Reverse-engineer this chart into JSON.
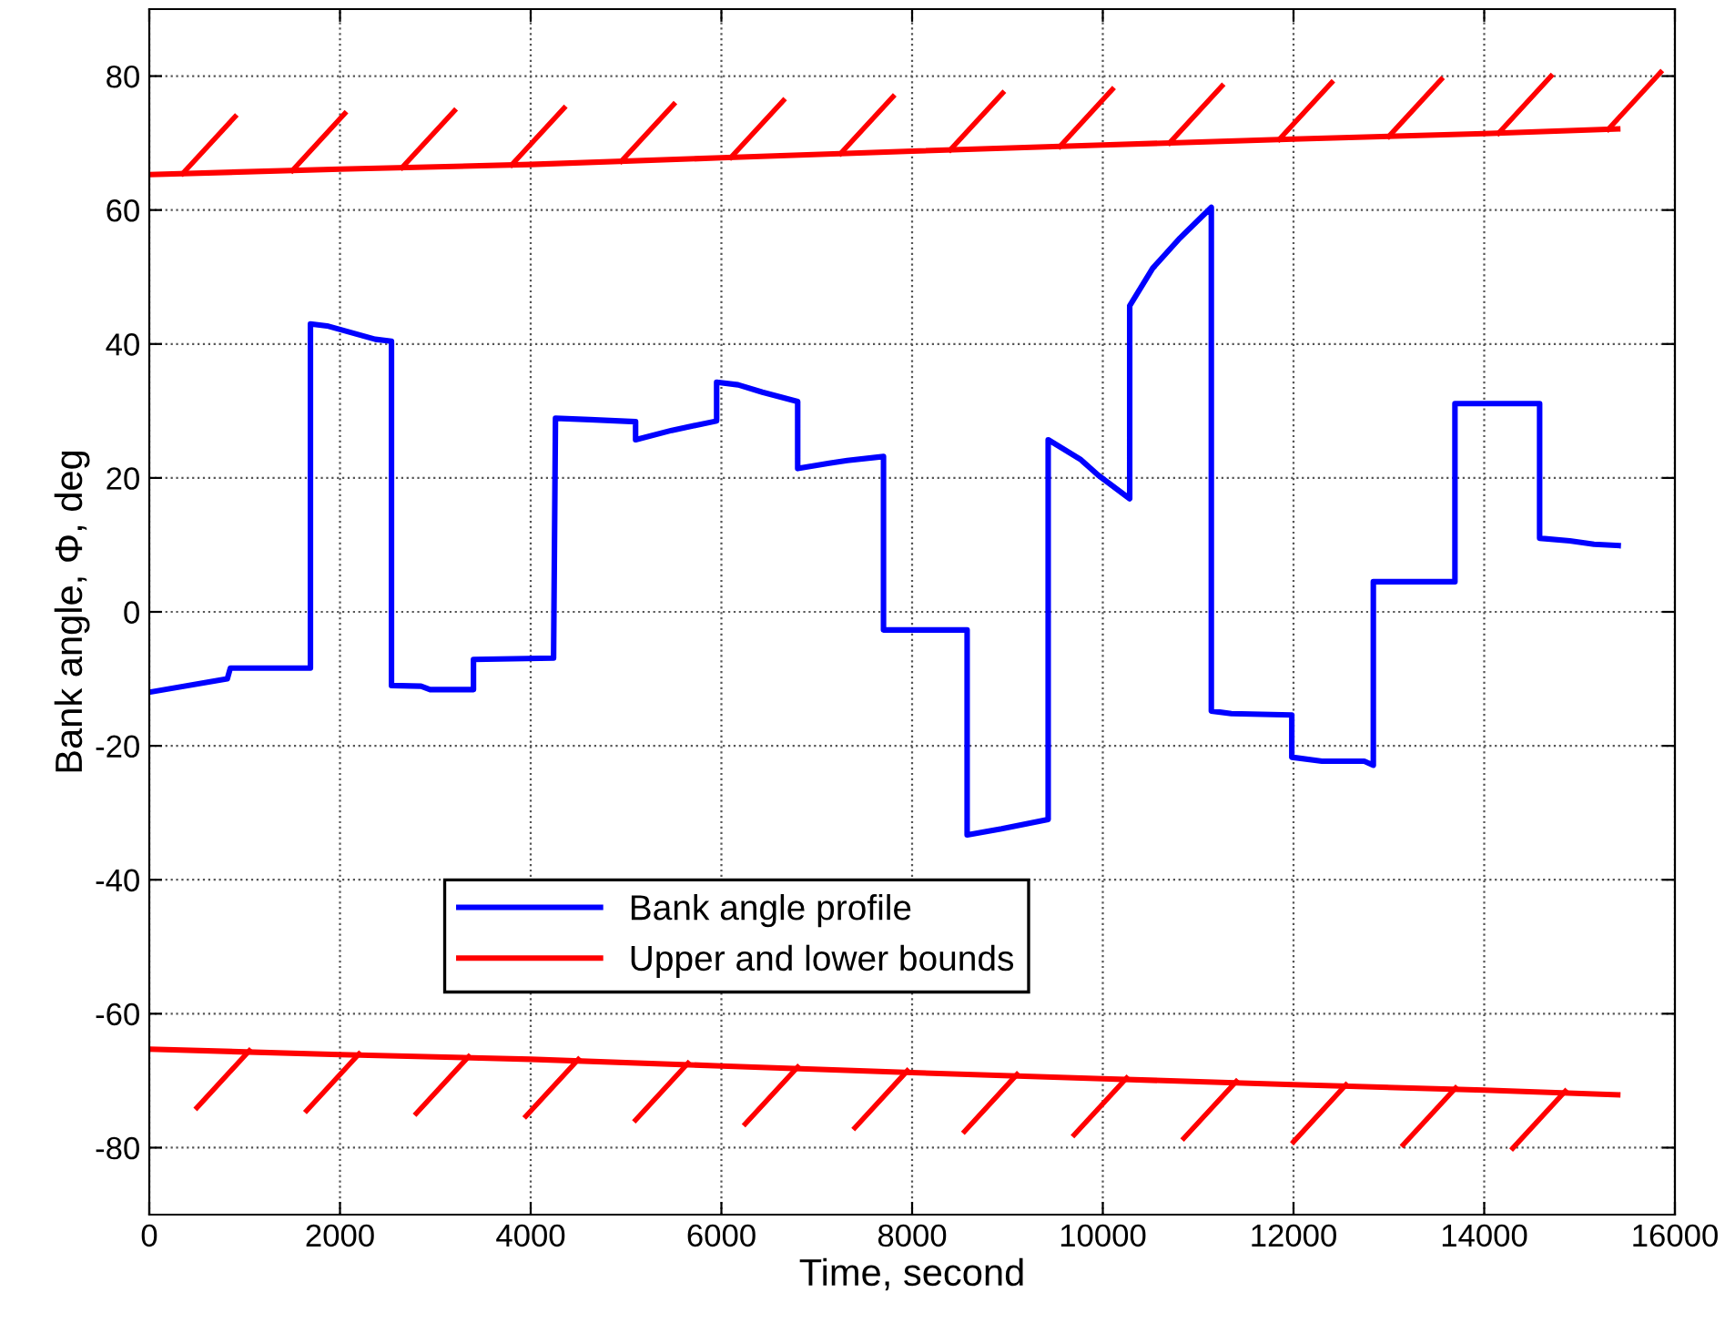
{
  "chart_data": {
    "type": "line",
    "xlabel": "Time, second",
    "ylabel": "Bank angle, Φ, deg",
    "xlim": [
      0,
      16000
    ],
    "xticks": [
      0,
      2000,
      4000,
      6000,
      8000,
      10000,
      12000,
      14000,
      16000
    ],
    "ylim": [
      -90,
      90
    ],
    "yticks": [
      -80,
      -60,
      -40,
      -20,
      0,
      20,
      40,
      60,
      80
    ],
    "grid": true,
    "legend": "bottom",
    "marker": "none",
    "line_style": "solid",
    "series": [
      {
        "name": "Bank angle profile",
        "color": "#0000ff",
        "x": [
          0,
          818,
          850,
          1690,
          1690,
          1864,
          2370,
          2540,
          2540,
          2850,
          2945,
          3400,
          3400,
          4240,
          4260,
          4620,
          5100,
          5100,
          5480,
          5950,
          5950,
          6175,
          6430,
          6800,
          6800,
          7130,
          7320,
          7700,
          7700,
          8577,
          8577,
          8938,
          9427,
          9427,
          9763,
          9953,
          10282,
          10282,
          10523,
          10808,
          11138,
          11138,
          11348,
          11982,
          11982,
          12298,
          12742,
          12837,
          12837,
          13693,
          13693,
          14581,
          14581,
          14898,
          15152,
          15405
        ],
        "values": [
          -12.0,
          -10.0,
          -8.4,
          -8.4,
          43.0,
          42.7,
          40.7,
          40.4,
          -11.0,
          -11.1,
          -11.6,
          -11.6,
          -7.1,
          -6.9,
          28.9,
          28.7,
          28.4,
          25.7,
          27.1,
          28.5,
          34.3,
          33.9,
          32.8,
          31.4,
          21.4,
          22.2,
          22.6,
          23.2,
          -2.7,
          -2.7,
          -33.3,
          -32.4,
          -31.0,
          25.7,
          22.8,
          20.4,
          16.9,
          45.7,
          51.3,
          55.8,
          60.4,
          -14.8,
          -15.2,
          -15.4,
          -21.7,
          -22.3,
          -22.3,
          -22.9,
          4.5,
          4.5,
          31.1,
          31.1,
          11.0,
          10.6,
          10.1,
          9.9
        ]
      },
      {
        "name": "Upper and lower bounds",
        "color": "#ff0000",
        "x": [
          0,
          2000,
          4000,
          6000,
          8000,
          10000,
          12000,
          14000,
          15400
        ],
        "values": [
          65.3,
          66.1,
          66.8,
          67.8,
          68.8,
          69.7,
          70.6,
          71.4,
          72.1
        ]
      },
      {
        "color": "#ff0000",
        "x": [
          0,
          2000,
          4000,
          6000,
          8000,
          10000,
          12000,
          14000,
          15400
        ],
        "values": [
          -65.3,
          -66.1,
          -66.8,
          -67.8,
          -68.8,
          -69.7,
          -70.6,
          -71.4,
          -72.1
        ]
      }
    ]
  }
}
